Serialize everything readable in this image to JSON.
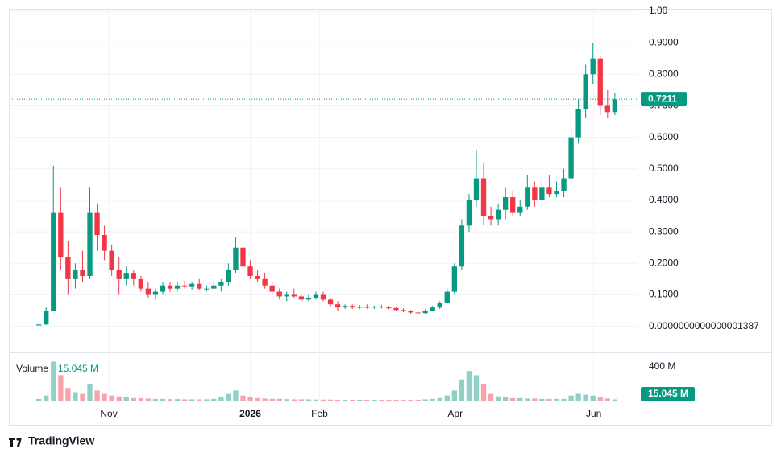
{
  "chart_data": {
    "type": "candlestick",
    "up_color": "#089981",
    "down_color": "#f23645",
    "ylim": [
      -0.08,
      1.01
    ],
    "yticks": [
      {
        "value": 1.387e-16,
        "label": "0.0000000000000001387"
      },
      {
        "value": 0.1,
        "label": "0.1000"
      },
      {
        "value": 0.2,
        "label": "0.2000"
      },
      {
        "value": 0.3,
        "label": "0.3000"
      },
      {
        "value": 0.4,
        "label": "0.4000"
      },
      {
        "value": 0.5,
        "label": "0.5000"
      },
      {
        "value": 0.6,
        "label": "0.6000"
      },
      {
        "value": 0.7,
        "label": "0.7000"
      },
      {
        "value": 0.8,
        "label": "0.8000"
      },
      {
        "value": 0.9,
        "label": "0.9000"
      },
      {
        "value": 1,
        "label": "1.00"
      }
    ],
    "xlim": [
      -4,
      82
    ],
    "xticks": [
      {
        "value": 9.6,
        "label": "Nov"
      },
      {
        "value": 29,
        "label": "2026"
      },
      {
        "value": 38.5,
        "label": "Feb"
      },
      {
        "value": 57.1,
        "label": "Apr"
      },
      {
        "value": 76.1,
        "label": "Jun"
      }
    ],
    "grid": true,
    "last_price": {
      "value": 0.7211,
      "label": "0.7211"
    },
    "candles": [
      [
        0.003,
        0.008,
        0.002,
        0.006
      ],
      [
        0.006,
        0.06,
        0.005,
        0.05
      ],
      [
        0.05,
        0.51,
        0.05,
        0.36
      ],
      [
        0.36,
        0.44,
        0.18,
        0.22
      ],
      [
        0.22,
        0.27,
        0.1,
        0.15
      ],
      [
        0.15,
        0.2,
        0.12,
        0.18
      ],
      [
        0.18,
        0.24,
        0.14,
        0.16
      ],
      [
        0.16,
        0.44,
        0.15,
        0.36
      ],
      [
        0.36,
        0.39,
        0.24,
        0.29
      ],
      [
        0.29,
        0.32,
        0.21,
        0.24
      ],
      [
        0.24,
        0.26,
        0.16,
        0.18
      ],
      [
        0.18,
        0.22,
        0.1,
        0.15
      ],
      [
        0.15,
        0.19,
        0.13,
        0.17
      ],
      [
        0.17,
        0.18,
        0.13,
        0.15
      ],
      [
        0.15,
        0.16,
        0.11,
        0.12
      ],
      [
        0.12,
        0.14,
        0.09,
        0.1
      ],
      [
        0.1,
        0.12,
        0.085,
        0.11
      ],
      [
        0.11,
        0.14,
        0.1,
        0.13
      ],
      [
        0.13,
        0.14,
        0.11,
        0.12
      ],
      [
        0.12,
        0.14,
        0.11,
        0.13
      ],
      [
        0.13,
        0.145,
        0.12,
        0.125
      ],
      [
        0.125,
        0.14,
        0.115,
        0.135
      ],
      [
        0.135,
        0.15,
        0.115,
        0.12
      ],
      [
        0.12,
        0.13,
        0.11,
        0.12
      ],
      [
        0.12,
        0.14,
        0.115,
        0.13
      ],
      [
        0.13,
        0.15,
        0.11,
        0.14
      ],
      [
        0.14,
        0.2,
        0.13,
        0.18
      ],
      [
        0.18,
        0.285,
        0.17,
        0.25
      ],
      [
        0.25,
        0.27,
        0.17,
        0.19
      ],
      [
        0.19,
        0.21,
        0.15,
        0.16
      ],
      [
        0.16,
        0.18,
        0.14,
        0.15
      ],
      [
        0.15,
        0.17,
        0.12,
        0.13
      ],
      [
        0.13,
        0.14,
        0.1,
        0.11
      ],
      [
        0.11,
        0.12,
        0.085,
        0.095
      ],
      [
        0.095,
        0.11,
        0.08,
        0.1
      ],
      [
        0.1,
        0.12,
        0.09,
        0.095
      ],
      [
        0.095,
        0.1,
        0.08,
        0.085
      ],
      [
        0.085,
        0.1,
        0.08,
        0.09
      ],
      [
        0.09,
        0.11,
        0.085,
        0.1
      ],
      [
        0.1,
        0.11,
        0.08,
        0.085
      ],
      [
        0.085,
        0.09,
        0.06,
        0.07
      ],
      [
        0.07,
        0.08,
        0.05,
        0.06
      ],
      [
        0.06,
        0.07,
        0.055,
        0.065
      ],
      [
        0.065,
        0.07,
        0.055,
        0.06
      ],
      [
        0.06,
        0.068,
        0.055,
        0.062
      ],
      [
        0.062,
        0.07,
        0.056,
        0.06
      ],
      [
        0.06,
        0.066,
        0.055,
        0.063
      ],
      [
        0.063,
        0.068,
        0.057,
        0.06
      ],
      [
        0.06,
        0.065,
        0.054,
        0.058
      ],
      [
        0.058,
        0.062,
        0.05,
        0.052
      ],
      [
        0.052,
        0.058,
        0.045,
        0.048
      ],
      [
        0.048,
        0.052,
        0.04,
        0.044
      ],
      [
        0.044,
        0.05,
        0.038,
        0.042
      ],
      [
        0.042,
        0.055,
        0.04,
        0.05
      ],
      [
        0.05,
        0.065,
        0.048,
        0.06
      ],
      [
        0.06,
        0.08,
        0.055,
        0.075
      ],
      [
        0.075,
        0.12,
        0.07,
        0.11
      ],
      [
        0.11,
        0.2,
        0.1,
        0.19
      ],
      [
        0.19,
        0.34,
        0.18,
        0.32
      ],
      [
        0.32,
        0.42,
        0.3,
        0.4
      ],
      [
        0.4,
        0.56,
        0.38,
        0.47
      ],
      [
        0.47,
        0.52,
        0.32,
        0.35
      ],
      [
        0.35,
        0.38,
        0.32,
        0.34
      ],
      [
        0.34,
        0.39,
        0.32,
        0.37
      ],
      [
        0.37,
        0.44,
        0.34,
        0.41
      ],
      [
        0.41,
        0.43,
        0.35,
        0.36
      ],
      [
        0.36,
        0.4,
        0.35,
        0.38
      ],
      [
        0.38,
        0.48,
        0.37,
        0.44
      ],
      [
        0.44,
        0.46,
        0.38,
        0.4
      ],
      [
        0.4,
        0.47,
        0.38,
        0.44
      ],
      [
        0.44,
        0.48,
        0.41,
        0.42
      ],
      [
        0.42,
        0.46,
        0.41,
        0.43
      ],
      [
        0.43,
        0.5,
        0.41,
        0.47
      ],
      [
        0.47,
        0.63,
        0.45,
        0.6
      ],
      [
        0.6,
        0.72,
        0.58,
        0.69
      ],
      [
        0.69,
        0.83,
        0.66,
        0.8
      ],
      [
        0.8,
        0.9,
        0.77,
        0.85
      ],
      [
        0.85,
        0.86,
        0.67,
        0.7
      ],
      [
        0.7,
        0.75,
        0.66,
        0.68
      ],
      [
        0.68,
        0.74,
        0.67,
        0.7211
      ]
    ],
    "volume_title": "Volume",
    "volume_ylim": [
      0,
      550
    ],
    "volume_yticks": [
      {
        "value": 400,
        "label": "400 M"
      }
    ],
    "volume_last": {
      "value": 15.045,
      "label": "15.045 M"
    },
    "volume": [
      20,
      60,
      460,
      300,
      150,
      100,
      80,
      200,
      120,
      80,
      60,
      50,
      40,
      30,
      30,
      25,
      20,
      20,
      18,
      18,
      15,
      15,
      15,
      15,
      20,
      40,
      80,
      120,
      60,
      40,
      30,
      25,
      20,
      20,
      18,
      15,
      15,
      15,
      12,
      12,
      12,
      10,
      10,
      10,
      10,
      10,
      10,
      10,
      10,
      10,
      10,
      10,
      10,
      15,
      20,
      30,
      60,
      120,
      250,
      350,
      300,
      200,
      80,
      50,
      40,
      30,
      30,
      25,
      25,
      20,
      20,
      20,
      20,
      60,
      80,
      70,
      60,
      40,
      25,
      15.045
    ]
  },
  "brand": "TradingView"
}
